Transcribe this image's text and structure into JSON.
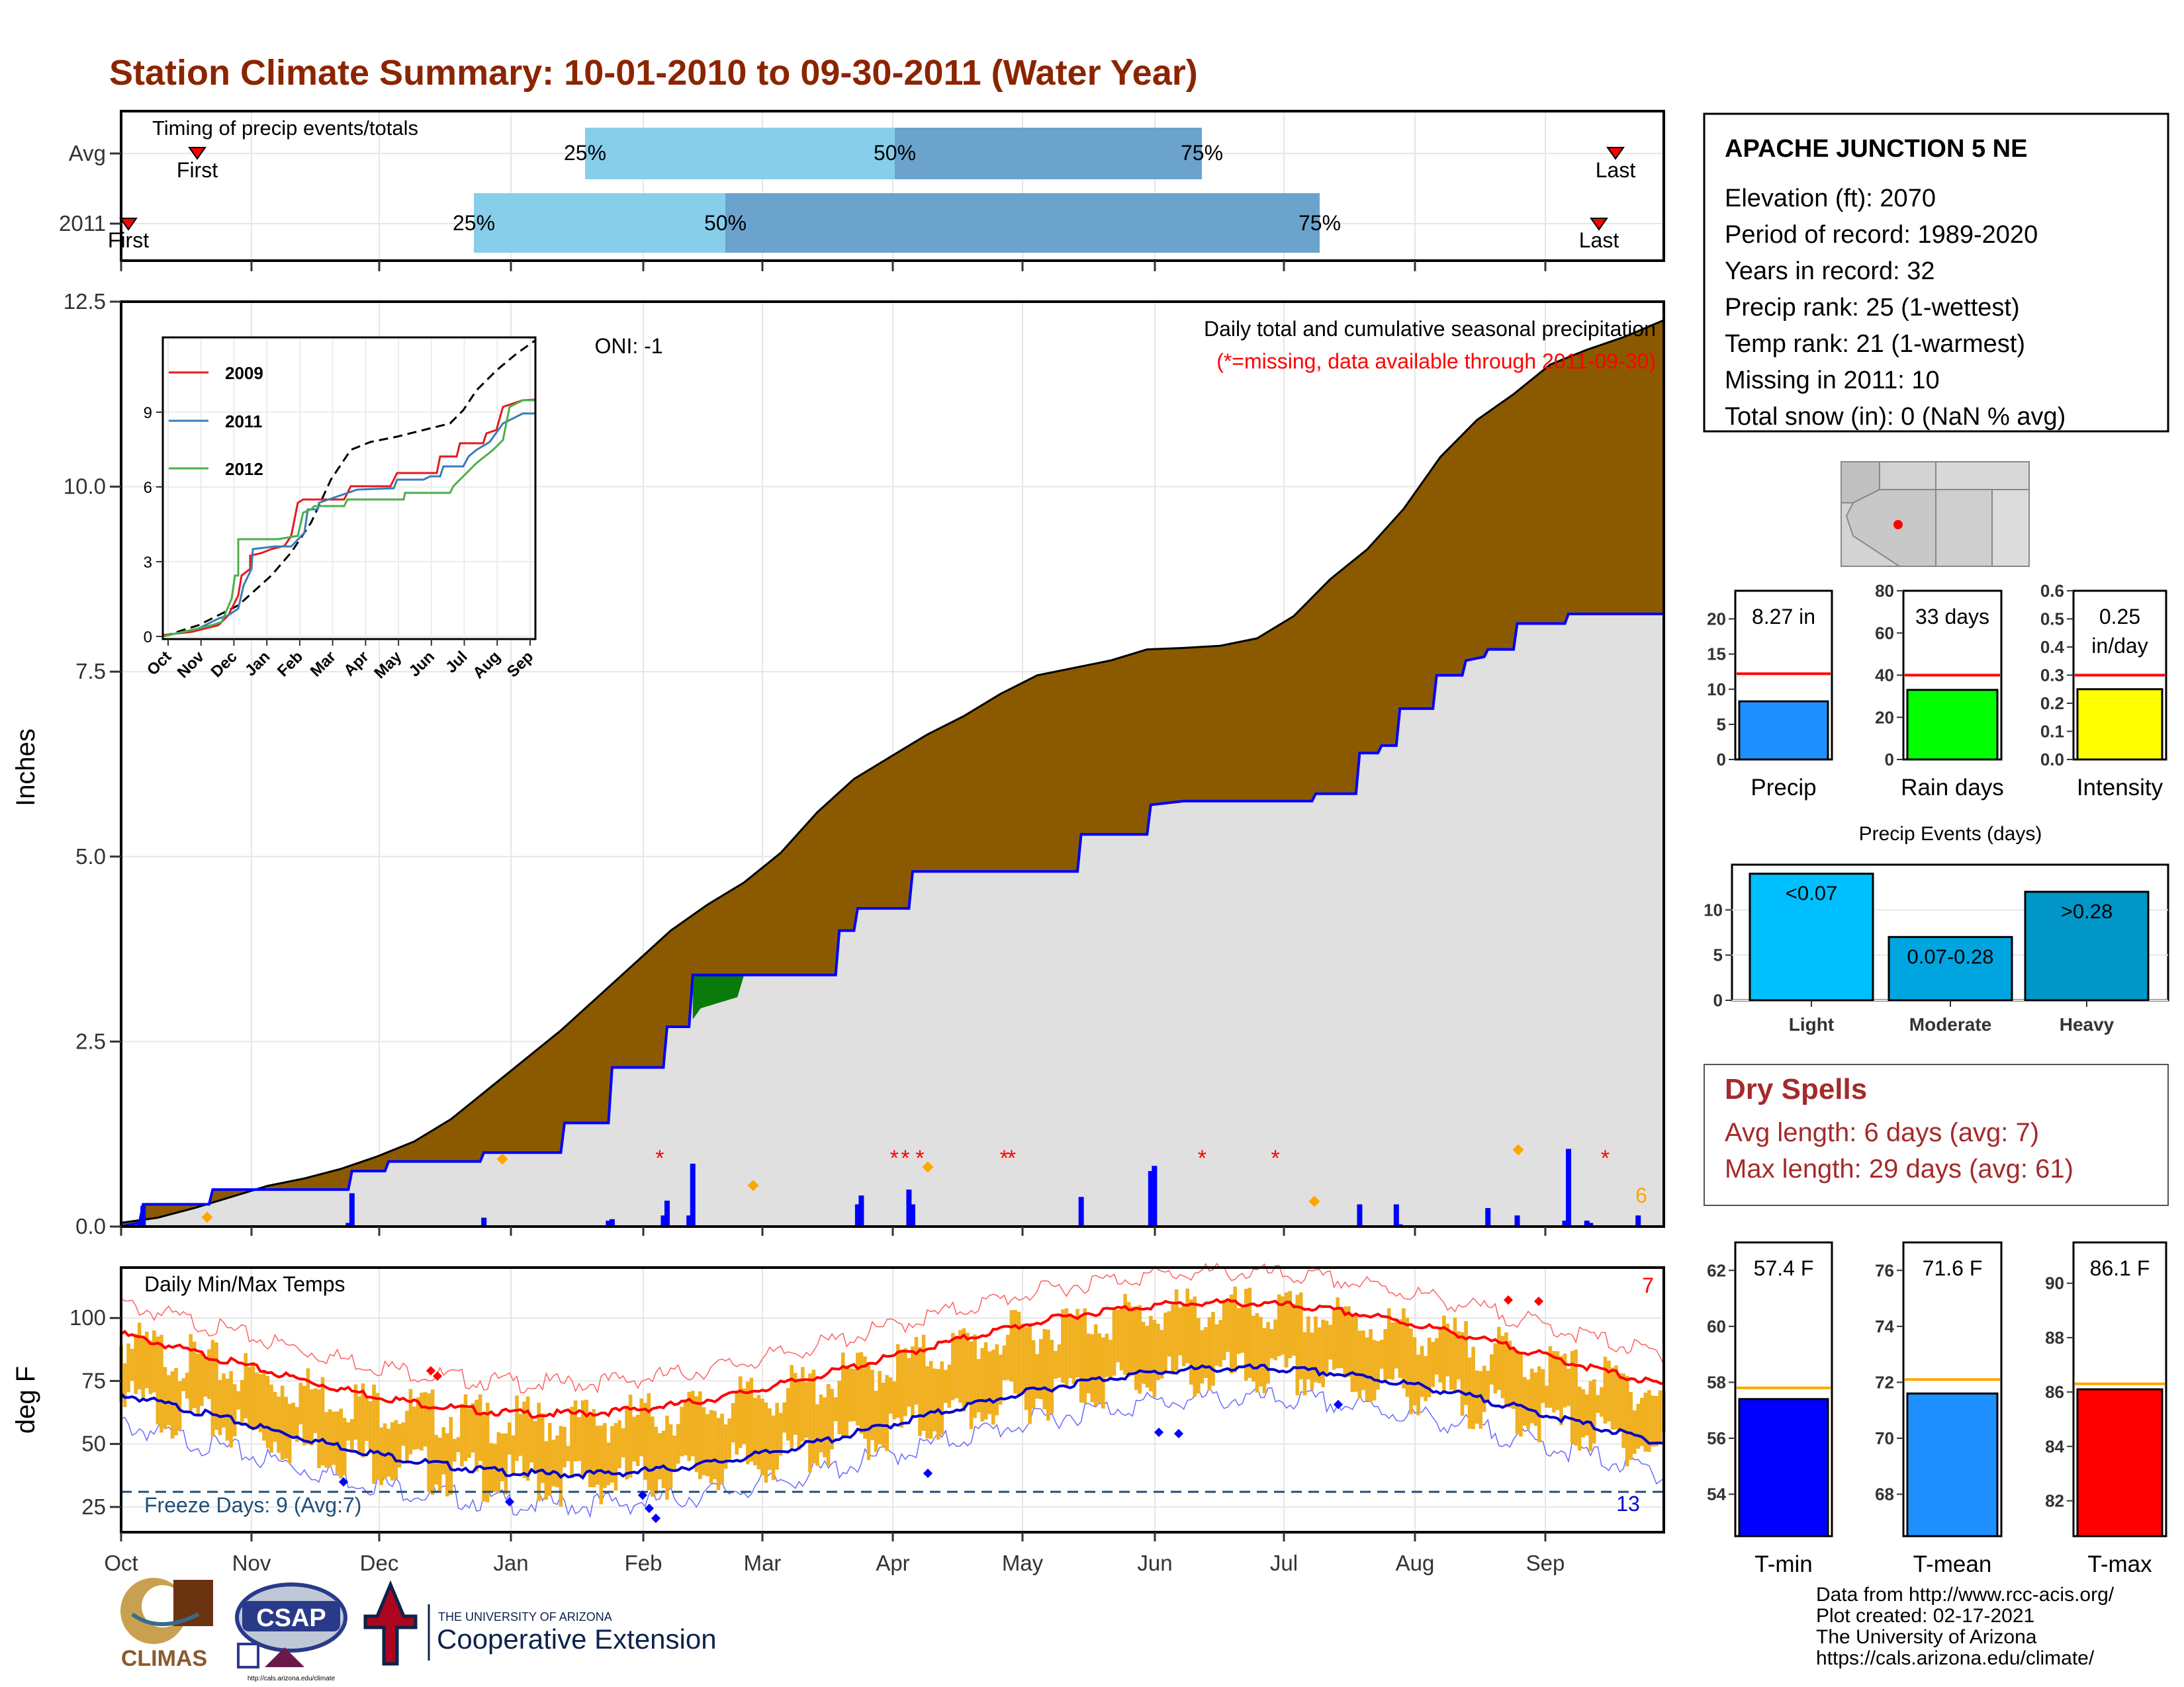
{
  "title": "Station Climate Summary: 10-01-2010 to 09-30-2011 (Water Year)",
  "colors": {
    "title": "#8b2500",
    "frame": "#000000",
    "grid": "#e6e6e6",
    "brown": "#8b5a00",
    "normal_fill": "#e0e0e0",
    "blue_line": "#0000ff",
    "green": "#0a7a0a",
    "orange": "#f0a010",
    "red": "#ff0000",
    "light_blue": "#87ceeb",
    "mid_blue": "#6ba3cc",
    "dry_red": "#a52a2a",
    "tmin_blue": "#0000ff",
    "tmean_blue": "#1e90ff",
    "tmax_red": "#ff0000",
    "freeze_line": "#1f4e79"
  },
  "timing": {
    "label": "Timing of precip events/totals",
    "rows": [
      {
        "name": "Avg",
        "first_label": "First",
        "last_label": "Last",
        "p25_label": "25%",
        "p50_label": "50%",
        "p75_label": "75%"
      },
      {
        "name": "2011",
        "first_label": "First",
        "last_label": "Last",
        "p25_label": "25%",
        "p50_label": "50%",
        "p75_label": "75%"
      }
    ]
  },
  "station": {
    "name": "APACHE JUNCTION 5 NE",
    "lines": [
      "Elevation (ft): 2070",
      "Period of record: 1989-2020",
      "Years in record: 32",
      "Precip rank: 25 (1-wettest)",
      "Temp rank: 21 (1-warmest)",
      "Missing in 2011: 10",
      "Total snow (in): 0 (NaN % avg)"
    ]
  },
  "precip_panel": {
    "ylabel": "Inches",
    "caption": "Daily total and cumulative seasonal precipitation",
    "missing_note": "(*=missing, data available through 2011-09-30)",
    "oni": "ONI: -1",
    "count_label": "6",
    "y_ticks": [
      "0.0",
      "2.5",
      "5.0",
      "7.5",
      "10.0",
      "12.5"
    ]
  },
  "inset": {
    "legend": [
      "2009",
      "2011",
      "2012"
    ],
    "legend_colors": [
      "#e41a1c",
      "#377eb8",
      "#4daf4a"
    ],
    "y_ticks": [
      "0",
      "3",
      "6",
      "9"
    ],
    "x_ticks": [
      "Oct",
      "Nov",
      "Dec",
      "Jan",
      "Feb",
      "Mar",
      "Apr",
      "May",
      "Jun",
      "Jul",
      "Aug",
      "Sep"
    ]
  },
  "temp_panel": {
    "ylabel": "deg F",
    "label": "Daily Min/Max Temps",
    "freeze_label": "Freeze Days: 9 (Avg:7)",
    "hot_count": "7",
    "cold_count": "13",
    "y_ticks": [
      "25",
      "50",
      "75",
      "100"
    ]
  },
  "months": [
    "Oct",
    "Nov",
    "Dec",
    "Jan",
    "Feb",
    "Mar",
    "Apr",
    "May",
    "Jun",
    "Jul",
    "Aug",
    "Sep"
  ],
  "bars_precip": [
    {
      "value_label": "8.27 in",
      "xlabel": "Precip",
      "ticks": [
        "0",
        "5",
        "10",
        "15",
        "20"
      ],
      "ymax": 24,
      "value": 8.27,
      "normal": 12.2,
      "color": "#1e90ff"
    },
    {
      "value_label": "33 days",
      "xlabel": "Rain days",
      "ticks": [
        "0",
        "20",
        "40",
        "60",
        "80"
      ],
      "ymax": 80,
      "value": 33,
      "normal": 40,
      "color": "#00ff00"
    },
    {
      "value_label": "0.25 in/day",
      "value_line1": "0.25",
      "value_line2": "in/day",
      "xlabel": "Intensity",
      "ticks": [
        "0.0",
        "0.1",
        "0.2",
        "0.3",
        "0.4",
        "0.5",
        "0.6"
      ],
      "ymax": 0.6,
      "value": 0.25,
      "normal": 0.3,
      "color": "#ffff00"
    }
  ],
  "events": {
    "title": "Precip Events (days)",
    "ticks": [
      "0",
      "5",
      "10"
    ],
    "categories": [
      "Light",
      "Moderate",
      "Heavy"
    ],
    "labels": [
      "<0.07",
      "0.07-0.28",
      ">0.28"
    ],
    "values": [
      14,
      7,
      12
    ],
    "colors": [
      "#00bfff",
      "#00a5e0",
      "#0096c8"
    ]
  },
  "dry_spells": {
    "title": "Dry Spells",
    "avg": "Avg length: 6 days (avg: 7)",
    "max": "Max length: 29 days (avg: 61)"
  },
  "bars_temp": [
    {
      "value_label": "57.4 F",
      "xlabel": "T-min",
      "ticks": [
        "54",
        "56",
        "58",
        "60",
        "62"
      ],
      "ymin": 52.5,
      "ymax": 63,
      "value": 57.4,
      "normal": 57.8,
      "color": "#0000ff"
    },
    {
      "value_label": "71.6 F",
      "xlabel": "T-mean",
      "ticks": [
        "68",
        "70",
        "72",
        "74",
        "76"
      ],
      "ymin": 66.5,
      "ymax": 77,
      "value": 71.6,
      "normal": 72.1,
      "color": "#1e90ff"
    },
    {
      "value_label": "86.1 F",
      "xlabel": "T-max",
      "ticks": [
        "82",
        "84",
        "86",
        "88",
        "90"
      ],
      "ymin": 80.7,
      "ymax": 91.5,
      "value": 86.1,
      "normal": 86.3,
      "color": "#ff0000"
    }
  ],
  "footer": {
    "lines": [
      "Data from http://www.rcc-acis.org/",
      "Plot created: 02-17-2021",
      "The University of Arizona",
      "https://cals.arizona.edu/climate/"
    ],
    "climas": "CLIMAS",
    "csap": "CSAP",
    "csap_url": "http://cals.arizona.edu/climate",
    "ua_small": "THE UNIVERSITY OF ARIZONA",
    "ua_big": "Cooperative Extension"
  },
  "chart_data": {
    "type": "area",
    "title": "Daily total and cumulative seasonal precipitation",
    "ylabel": "Inches",
    "ylim": [
      0,
      12.5
    ],
    "x_range": [
      "2010-10-01",
      "2011-09-30"
    ],
    "series": [
      {
        "name": "normal_cumulative",
        "points": [
          [
            0,
            0.05
          ],
          [
            10,
            0.12
          ],
          [
            20,
            0.25
          ],
          [
            30,
            0.4
          ],
          [
            40,
            0.55
          ],
          [
            50,
            0.65
          ],
          [
            60,
            0.78
          ],
          [
            70,
            0.95
          ],
          [
            80,
            1.15
          ],
          [
            90,
            1.45
          ],
          [
            100,
            1.85
          ],
          [
            110,
            2.25
          ],
          [
            120,
            2.65
          ],
          [
            130,
            3.1
          ],
          [
            140,
            3.55
          ],
          [
            150,
            4.0
          ],
          [
            160,
            4.35
          ],
          [
            170,
            4.65
          ],
          [
            180,
            5.05
          ],
          [
            190,
            5.6
          ],
          [
            200,
            6.05
          ],
          [
            210,
            6.35
          ],
          [
            220,
            6.65
          ],
          [
            230,
            6.9
          ],
          [
            240,
            7.2
          ],
          [
            250,
            7.45
          ],
          [
            260,
            7.55
          ],
          [
            270,
            7.65
          ],
          [
            280,
            7.8
          ],
          [
            290,
            7.82
          ],
          [
            300,
            7.85
          ],
          [
            310,
            7.95
          ],
          [
            320,
            8.25
          ],
          [
            330,
            8.75
          ],
          [
            340,
            9.15
          ],
          [
            350,
            9.7
          ],
          [
            360,
            10.4
          ],
          [
            370,
            10.9
          ],
          [
            380,
            11.25
          ],
          [
            390,
            11.65
          ],
          [
            395,
            11.75
          ],
          [
            400,
            11.85
          ],
          [
            410,
            12.02
          ],
          [
            421,
            12.25
          ]
        ]
      },
      {
        "name": "2011_cumulative",
        "points": [
          [
            0,
            0.0
          ],
          [
            5,
            0.05
          ],
          [
            6,
            0.3
          ],
          [
            24,
            0.3
          ],
          [
            25,
            0.5
          ],
          [
            62,
            0.5
          ],
          [
            63,
            0.75
          ],
          [
            72,
            0.75
          ],
          [
            73,
            0.88
          ],
          [
            98,
            0.88
          ],
          [
            99,
            1.0
          ],
          [
            120,
            1.0
          ],
          [
            121,
            1.4
          ],
          [
            133,
            1.4
          ],
          [
            134,
            2.15
          ],
          [
            148,
            2.15
          ],
          [
            149,
            2.7
          ],
          [
            155,
            2.7
          ],
          [
            156,
            3.4
          ],
          [
            178,
            3.4
          ],
          [
            179,
            3.4
          ],
          [
            195,
            3.4
          ],
          [
            196,
            4.0
          ],
          [
            200,
            4.0
          ],
          [
            201,
            4.3
          ],
          [
            215,
            4.3
          ],
          [
            216,
            4.8
          ],
          [
            261,
            4.8
          ],
          [
            262,
            5.3
          ],
          [
            280,
            5.3
          ],
          [
            281,
            5.7
          ],
          [
            290,
            5.75
          ],
          [
            293,
            5.75
          ],
          [
            325,
            5.75
          ],
          [
            326,
            5.85
          ],
          [
            337,
            5.85
          ],
          [
            338,
            6.4
          ],
          [
            343,
            6.4
          ],
          [
            344,
            6.5
          ],
          [
            348,
            6.5
          ],
          [
            349,
            7.0
          ],
          [
            358,
            7.0
          ],
          [
            359,
            7.45
          ],
          [
            366,
            7.45
          ],
          [
            367,
            7.65
          ],
          [
            372,
            7.7
          ],
          [
            373,
            7.8
          ],
          [
            380,
            7.8
          ],
          [
            381,
            8.15
          ],
          [
            394,
            8.15
          ],
          [
            395,
            8.28
          ],
          [
            400,
            8.28
          ],
          [
            405,
            8.28
          ],
          [
            421,
            8.28
          ]
        ]
      }
    ],
    "daily_precip_bars": [
      [
        5,
        0.04
      ],
      [
        6,
        0.28
      ],
      [
        62,
        0.05
      ],
      [
        63,
        0.45
      ],
      [
        99,
        0.12
      ],
      [
        133,
        0.08
      ],
      [
        134,
        0.1
      ],
      [
        148,
        0.15
      ],
      [
        149,
        0.35
      ],
      [
        155,
        0.15
      ],
      [
        156,
        0.85
      ],
      [
        201,
        0.3
      ],
      [
        202,
        0.42
      ],
      [
        215,
        0.5
      ],
      [
        216,
        0.3
      ],
      [
        262,
        0.4
      ],
      [
        281,
        0.75
      ],
      [
        282,
        0.82
      ],
      [
        338,
        0.3
      ],
      [
        348,
        0.3
      ],
      [
        349,
        0.03
      ],
      [
        373,
        0.25
      ],
      [
        381,
        0.15
      ],
      [
        394,
        0.08
      ],
      [
        395,
        1.05
      ],
      [
        400,
        0.08
      ],
      [
        401,
        0.05
      ],
      [
        414,
        0.15
      ]
    ],
    "missing_markers_day": [
      147,
      211,
      214,
      218,
      241,
      243,
      295,
      315,
      405
    ]
  }
}
